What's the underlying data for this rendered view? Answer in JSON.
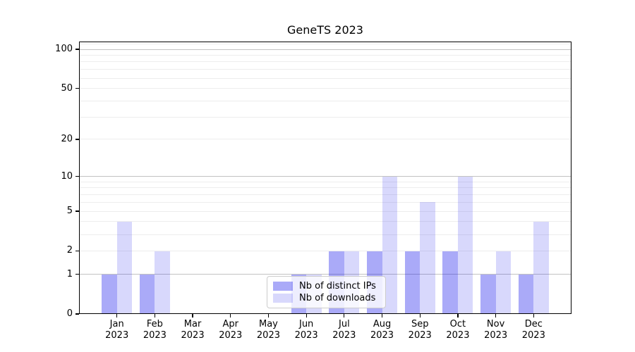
{
  "chart_data": {
    "type": "bar",
    "title": "GeneTS 2023",
    "categories": [
      "Jan",
      "Feb",
      "Mar",
      "Apr",
      "May",
      "Jun",
      "Jul",
      "Aug",
      "Sep",
      "Oct",
      "Nov",
      "Dec"
    ],
    "category_year": "2023",
    "series": [
      {
        "name": "Nb of distinct IPs",
        "color": "rgba(10,10,235,0.345)",
        "values": [
          1,
          1,
          0,
          0,
          0,
          1,
          2,
          2,
          2,
          2,
          1,
          1
        ]
      },
      {
        "name": "Nb of downloads",
        "color": "rgba(10,10,235,0.16)",
        "values": [
          4,
          2,
          0,
          0,
          0,
          1,
          2,
          10,
          6,
          10,
          2,
          4
        ]
      }
    ],
    "xlabel": "",
    "ylabel": "",
    "yscale": "log10(1+value)",
    "ylim": [
      0,
      113
    ],
    "yticks": [
      0,
      1,
      2,
      5,
      10,
      20,
      50,
      100
    ],
    "gridlines_major": [
      1,
      10,
      100
    ],
    "gridlines_minor": [
      2,
      3,
      4,
      5,
      6,
      7,
      8,
      9,
      20,
      30,
      40,
      50,
      60,
      70,
      80,
      90,
      110
    ],
    "grid_color_major": "#c2c2c2",
    "grid_color_minor": "#ededed",
    "legend_position": "lower center",
    "background": "#ffffff"
  }
}
